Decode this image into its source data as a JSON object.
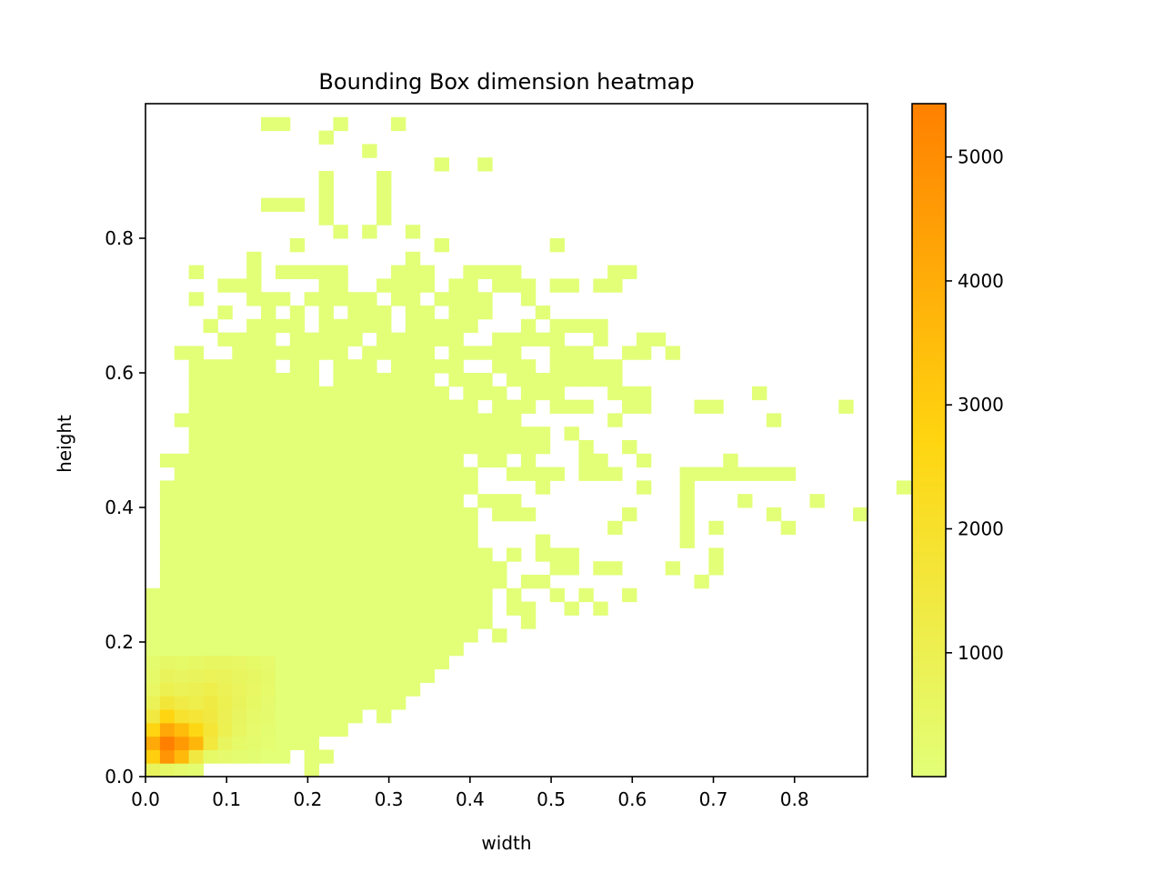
{
  "chart_data": {
    "type": "heatmap",
    "title": "Bounding Box dimension heatmap",
    "xlabel": "width",
    "ylabel": "height",
    "xlim": [
      0.0,
      0.89
    ],
    "ylim": [
      0.0,
      1.0
    ],
    "x_ticks": [
      "0.0",
      "0.1",
      "0.2",
      "0.3",
      "0.4",
      "0.5",
      "0.6",
      "0.7",
      "0.8"
    ],
    "y_ticks": [
      "0.0",
      "0.2",
      "0.4",
      "0.6",
      "0.8"
    ],
    "colorbar": {
      "ticks": [
        "1000",
        "2000",
        "3000",
        "4000",
        "5000"
      ],
      "range": [
        1,
        5430
      ],
      "color_low": "#e2ff77",
      "color_mid": "#ffd510",
      "color_high": "#ff8000"
    },
    "bins": {
      "nx": 50,
      "ny": 50,
      "bin_width": 0.0178,
      "bin_height": 0.02
    },
    "cells": [
      [
        0,
        0,
        700
      ],
      [
        1,
        0,
        450
      ],
      [
        2,
        0,
        300
      ],
      [
        3,
        0,
        180
      ],
      [
        0,
        1,
        2900
      ],
      [
        1,
        1,
        4800
      ],
      [
        2,
        1,
        3600
      ],
      [
        3,
        1,
        1400
      ],
      [
        4,
        1,
        420
      ],
      [
        5,
        1,
        260
      ],
      [
        6,
        1,
        180
      ],
      [
        7,
        1,
        120
      ],
      [
        0,
        2,
        4100
      ],
      [
        1,
        2,
        5430
      ],
      [
        2,
        2,
        4600
      ],
      [
        3,
        2,
        3700
      ],
      [
        4,
        2,
        1500
      ],
      [
        5,
        2,
        650
      ],
      [
        6,
        2,
        380
      ],
      [
        7,
        2,
        250
      ],
      [
        8,
        2,
        160
      ],
      [
        0,
        3,
        2700
      ],
      [
        1,
        3,
        4200
      ],
      [
        2,
        3,
        3500
      ],
      [
        3,
        3,
        2600
      ],
      [
        4,
        3,
        1700
      ],
      [
        5,
        3,
        1000
      ],
      [
        6,
        3,
        560
      ],
      [
        7,
        3,
        330
      ],
      [
        8,
        3,
        220
      ],
      [
        0,
        4,
        1400
      ],
      [
        1,
        4,
        2700
      ],
      [
        2,
        4,
        1900
      ],
      [
        3,
        4,
        1700
      ],
      [
        4,
        4,
        1400
      ],
      [
        5,
        4,
        950
      ],
      [
        6,
        4,
        620
      ],
      [
        7,
        4,
        400
      ],
      [
        8,
        4,
        260
      ],
      [
        0,
        5,
        850
      ],
      [
        1,
        5,
        1600
      ],
      [
        2,
        5,
        1300
      ],
      [
        3,
        5,
        1100
      ],
      [
        4,
        5,
        1350
      ],
      [
        5,
        5,
        1000
      ],
      [
        6,
        5,
        700
      ],
      [
        7,
        5,
        480
      ],
      [
        8,
        5,
        300
      ],
      [
        0,
        6,
        520
      ],
      [
        1,
        6,
        1000
      ],
      [
        2,
        6,
        850
      ],
      [
        3,
        6,
        950
      ],
      [
        4,
        6,
        1100
      ],
      [
        5,
        6,
        900
      ],
      [
        6,
        6,
        720
      ],
      [
        7,
        6,
        520
      ],
      [
        8,
        6,
        340
      ],
      [
        0,
        7,
        360
      ],
      [
        1,
        7,
        700
      ],
      [
        2,
        7,
        620
      ],
      [
        3,
        7,
        700
      ],
      [
        4,
        7,
        800
      ],
      [
        5,
        7,
        760
      ],
      [
        6,
        7,
        640
      ],
      [
        7,
        7,
        500
      ],
      [
        8,
        7,
        360
      ],
      [
        0,
        8,
        240
      ],
      [
        1,
        8,
        460
      ],
      [
        2,
        8,
        420
      ],
      [
        3,
        8,
        480
      ],
      [
        4,
        8,
        560
      ],
      [
        5,
        8,
        560
      ],
      [
        6,
        8,
        520
      ],
      [
        7,
        8,
        420
      ],
      [
        8,
        8,
        330
      ]
    ],
    "nonempty_rows": [
      {
        "row": 0,
        "ranges": [
          [
            0,
            3
          ],
          [
            11,
            11
          ]
        ]
      },
      {
        "row": 1,
        "ranges": [
          [
            0,
            9
          ],
          [
            11,
            12
          ]
        ]
      },
      {
        "row": 2,
        "ranges": [
          [
            0,
            11
          ]
        ]
      },
      {
        "row": 3,
        "ranges": [
          [
            0,
            13
          ]
        ]
      },
      {
        "row": 4,
        "ranges": [
          [
            0,
            14
          ],
          [
            16,
            16
          ]
        ]
      },
      {
        "row": 5,
        "ranges": [
          [
            0,
            17
          ]
        ]
      },
      {
        "row": 6,
        "ranges": [
          [
            0,
            18
          ]
        ]
      },
      {
        "row": 7,
        "ranges": [
          [
            0,
            19
          ]
        ]
      },
      {
        "row": 8,
        "ranges": [
          [
            0,
            20
          ]
        ]
      },
      {
        "row": 9,
        "ranges": [
          [
            0,
            21
          ]
        ]
      },
      {
        "row": 10,
        "ranges": [
          [
            0,
            22
          ],
          [
            24,
            24
          ]
        ]
      },
      {
        "row": 11,
        "ranges": [
          [
            0,
            23
          ],
          [
            26,
            26
          ]
        ]
      },
      {
        "row": 12,
        "ranges": [
          [
            0,
            23
          ],
          [
            25,
            26
          ],
          [
            29,
            29
          ],
          [
            31,
            31
          ]
        ]
      },
      {
        "row": 13,
        "ranges": [
          [
            0,
            23
          ],
          [
            25,
            25
          ],
          [
            28,
            28
          ],
          [
            30,
            30
          ],
          [
            33,
            33
          ]
        ]
      },
      {
        "row": 14,
        "ranges": [
          [
            1,
            24
          ],
          [
            26,
            27
          ],
          [
            38,
            38
          ]
        ]
      },
      {
        "row": 15,
        "ranges": [
          [
            1,
            24
          ],
          [
            28,
            29
          ],
          [
            31,
            32
          ],
          [
            36,
            36
          ],
          [
            39,
            39
          ]
        ]
      },
      {
        "row": 16,
        "ranges": [
          [
            1,
            23
          ],
          [
            25,
            25
          ],
          [
            27,
            29
          ],
          [
            39,
            39
          ]
        ]
      },
      {
        "row": 17,
        "ranges": [
          [
            1,
            22
          ],
          [
            27,
            27
          ],
          [
            37,
            37
          ]
        ]
      },
      {
        "row": 18,
        "ranges": [
          [
            1,
            22
          ],
          [
            32,
            32
          ],
          [
            37,
            37
          ],
          [
            39,
            39
          ],
          [
            44,
            44
          ]
        ]
      },
      {
        "row": 19,
        "ranges": [
          [
            1,
            22
          ],
          [
            24,
            26
          ],
          [
            33,
            33
          ],
          [
            37,
            37
          ],
          [
            43,
            43
          ],
          [
            49,
            49
          ]
        ]
      },
      {
        "row": 20,
        "ranges": [
          [
            1,
            21
          ],
          [
            23,
            25
          ],
          [
            37,
            37
          ],
          [
            41,
            41
          ],
          [
            46,
            46
          ]
        ]
      },
      {
        "row": 21,
        "ranges": [
          [
            1,
            22
          ],
          [
            27,
            27
          ],
          [
            34,
            34
          ],
          [
            37,
            37
          ],
          [
            52,
            52
          ]
        ]
      },
      {
        "row": 22,
        "ranges": [
          [
            2,
            22
          ],
          [
            25,
            28
          ],
          [
            30,
            32
          ],
          [
            37,
            44
          ]
        ]
      },
      {
        "row": 23,
        "ranges": [
          [
            1,
            21
          ],
          [
            23,
            24
          ],
          [
            26,
            26
          ],
          [
            30,
            31
          ],
          [
            34,
            34
          ],
          [
            40,
            40
          ]
        ]
      },
      {
        "row": 24,
        "ranges": [
          [
            3,
            27
          ],
          [
            30,
            30
          ],
          [
            33,
            33
          ]
        ]
      },
      {
        "row": 25,
        "ranges": [
          [
            3,
            27
          ],
          [
            29,
            29
          ]
        ]
      },
      {
        "row": 26,
        "ranges": [
          [
            2,
            25
          ],
          [
            32,
            32
          ],
          [
            43,
            43
          ]
        ]
      },
      {
        "row": 27,
        "ranges": [
          [
            3,
            22
          ],
          [
            24,
            26
          ],
          [
            28,
            30
          ],
          [
            33,
            34
          ],
          [
            38,
            39
          ],
          [
            48,
            48
          ]
        ]
      },
      {
        "row": 28,
        "ranges": [
          [
            3,
            20
          ],
          [
            22,
            24
          ],
          [
            26,
            28
          ],
          [
            32,
            34
          ],
          [
            42,
            42
          ]
        ]
      },
      {
        "row": 29,
        "ranges": [
          [
            3,
            11
          ],
          [
            13,
            19
          ],
          [
            21,
            23
          ],
          [
            25,
            32
          ]
        ]
      },
      {
        "row": 30,
        "ranges": [
          [
            3,
            8
          ],
          [
            10,
            11
          ],
          [
            13,
            15
          ],
          [
            17,
            21
          ],
          [
            24,
            26
          ],
          [
            28,
            32
          ]
        ]
      },
      {
        "row": 31,
        "ranges": [
          [
            2,
            3
          ],
          [
            6,
            13
          ],
          [
            15,
            19
          ],
          [
            21,
            25
          ],
          [
            28,
            30
          ],
          [
            33,
            34
          ],
          [
            36,
            36
          ]
        ]
      },
      {
        "row": 32,
        "ranges": [
          [
            5,
            8
          ],
          [
            10,
            14
          ],
          [
            16,
            21
          ],
          [
            24,
            28
          ],
          [
            31,
            31
          ],
          [
            34,
            35
          ]
        ]
      },
      {
        "row": 33,
        "ranges": [
          [
            4,
            4
          ],
          [
            7,
            10
          ],
          [
            12,
            16
          ],
          [
            18,
            22
          ],
          [
            26,
            26
          ],
          [
            28,
            31
          ]
        ]
      },
      {
        "row": 34,
        "ranges": [
          [
            5,
            5
          ],
          [
            8,
            8
          ],
          [
            10,
            10
          ],
          [
            12,
            12
          ],
          [
            14,
            16
          ],
          [
            18,
            19
          ],
          [
            21,
            23
          ],
          [
            27,
            27
          ]
        ]
      },
      {
        "row": 35,
        "ranges": [
          [
            3,
            3
          ],
          [
            7,
            9
          ],
          [
            11,
            15
          ],
          [
            17,
            18
          ],
          [
            20,
            23
          ],
          [
            26,
            26
          ]
        ]
      },
      {
        "row": 36,
        "ranges": [
          [
            5,
            7
          ],
          [
            12,
            13
          ],
          [
            16,
            19
          ],
          [
            21,
            22
          ],
          [
            24,
            26
          ],
          [
            28,
            29
          ],
          [
            31,
            32
          ]
        ]
      },
      {
        "row": 37,
        "ranges": [
          [
            3,
            3
          ],
          [
            7,
            7
          ],
          [
            9,
            13
          ],
          [
            17,
            19
          ],
          [
            22,
            25
          ],
          [
            32,
            33
          ]
        ]
      },
      {
        "row": 38,
        "ranges": [
          [
            7,
            7
          ],
          [
            18,
            18
          ]
        ]
      },
      {
        "row": 39,
        "ranges": [
          [
            10,
            10
          ],
          [
            20,
            20
          ],
          [
            28,
            28
          ]
        ]
      },
      {
        "row": 40,
        "ranges": [
          [
            13,
            13
          ],
          [
            15,
            15
          ],
          [
            18,
            18
          ]
        ]
      },
      {
        "row": 41,
        "ranges": [
          [
            12,
            12
          ],
          [
            16,
            16
          ]
        ]
      },
      {
        "row": 42,
        "ranges": [
          [
            8,
            10
          ],
          [
            12,
            12
          ],
          [
            16,
            16
          ]
        ]
      },
      {
        "row": 43,
        "ranges": [
          [
            12,
            12
          ],
          [
            16,
            16
          ]
        ]
      },
      {
        "row": 44,
        "ranges": [
          [
            12,
            12
          ],
          [
            16,
            16
          ]
        ]
      },
      {
        "row": 45,
        "ranges": [
          [
            20,
            20
          ],
          [
            23,
            23
          ]
        ]
      },
      {
        "row": 46,
        "ranges": [
          [
            15,
            15
          ]
        ]
      },
      {
        "row": 47,
        "ranges": [
          [
            12,
            12
          ]
        ]
      },
      {
        "row": 48,
        "ranges": [
          [
            8,
            9
          ],
          [
            13,
            13
          ],
          [
            17,
            17
          ]
        ]
      }
    ],
    "background_count": 8,
    "grid": false,
    "legend": "none"
  }
}
